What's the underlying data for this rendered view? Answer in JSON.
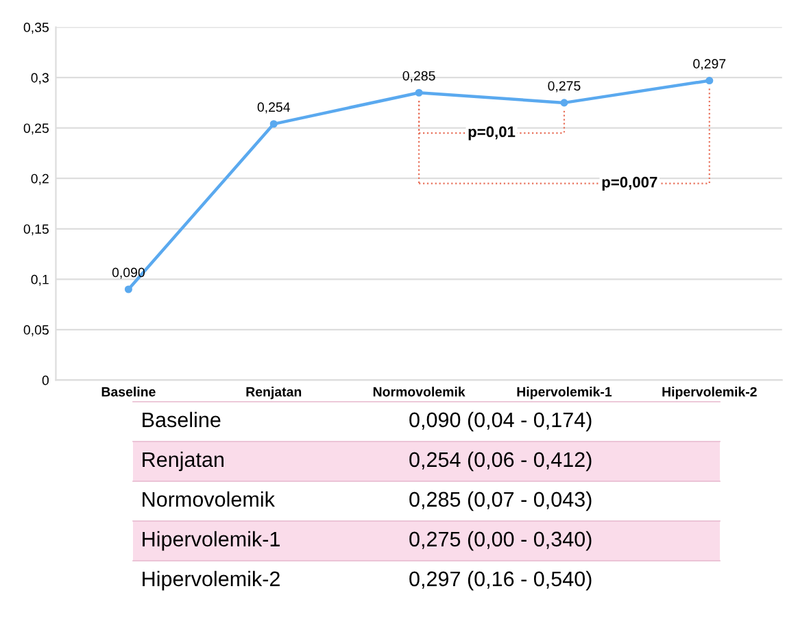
{
  "chart_data": {
    "type": "line",
    "categories": [
      "Baseline",
      "Renjatan",
      "Normovolemik",
      "Hipervolemik-1",
      "Hipervolemik-2"
    ],
    "series": [
      {
        "color": "#5aa9ef",
        "values": [
          0.09,
          0.254,
          0.285,
          0.275,
          0.297
        ],
        "value_labels": [
          "0,090",
          "0,254",
          "0,285",
          "0,275",
          "0,297"
        ]
      }
    ],
    "ylim": [
      0,
      0.35
    ],
    "yticks": [
      0,
      {
        "value": 0.05,
        "label": "0,05"
      },
      {
        "value": 0.1,
        "label": "0,1"
      },
      {
        "value": 0.15,
        "label": "0,15"
      },
      {
        "value": 0.2,
        "label": "0,2"
      },
      {
        "value": 0.25,
        "label": "0,25"
      },
      {
        "value": 0.3,
        "label": "0,3"
      },
      {
        "value": 0.35,
        "label": "0,35"
      }
    ],
    "grid": "y",
    "marker": "circle",
    "line_style": "solid",
    "legend": false,
    "annotations": [
      "p=0,01",
      "p=0,007",
      "Baseline",
      "0,090 (0,04 - 0,174)",
      "Renjatan",
      "0,254 (0,06 - 0,412)",
      "Normovolemik",
      "0,285 (0,07 - 0,043)",
      "Hipervolemik-1",
      "0,275 (0,00 - 0,340)",
      "Hipervolemik-2",
      "0,297 (0,16 - 0,540)"
    ]
  }
}
